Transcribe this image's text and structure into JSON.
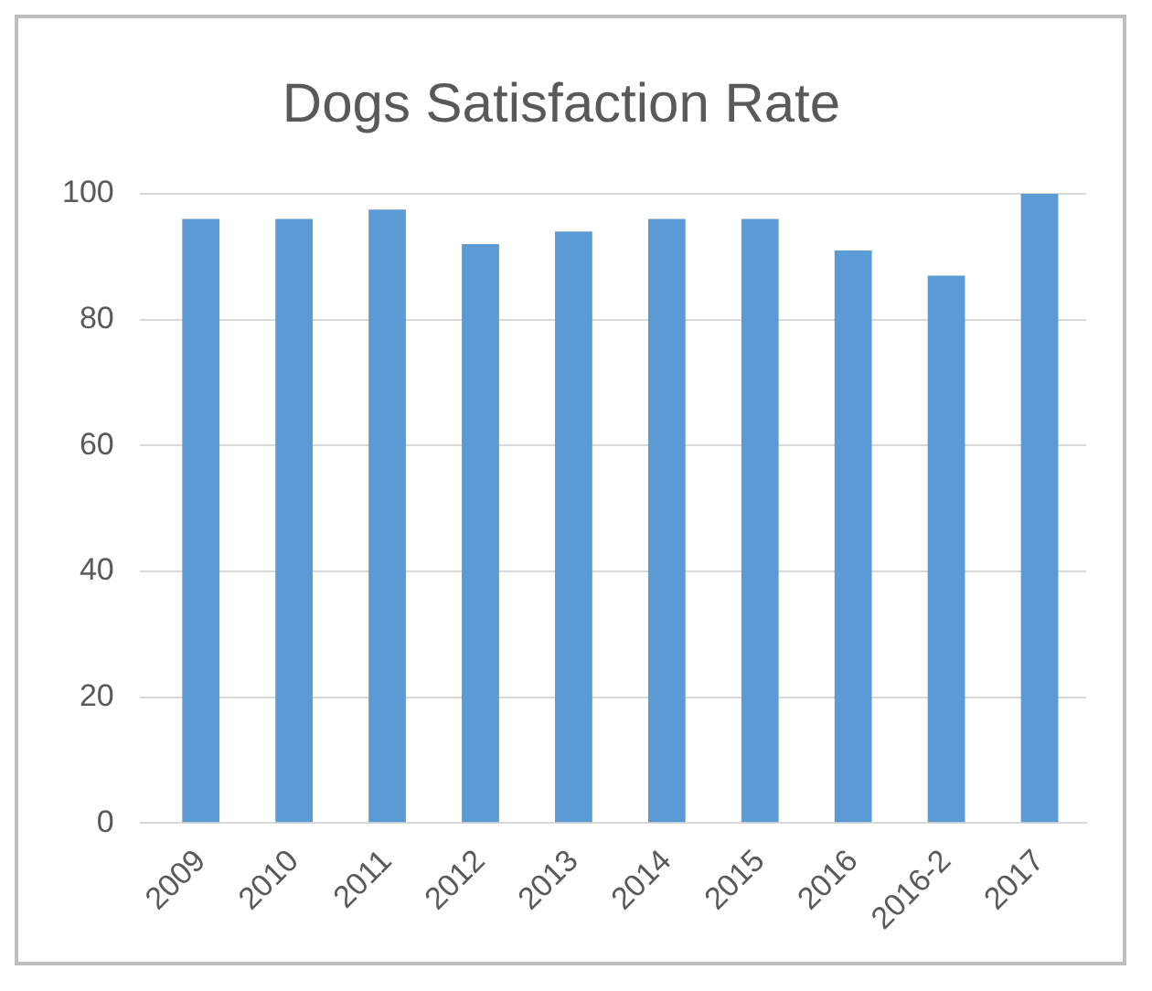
{
  "chart_data": {
    "type": "bar",
    "title": "Dogs Satisfaction Rate",
    "categories": [
      "2009",
      "2010",
      "2011",
      "2012",
      "2013",
      "2014",
      "2015",
      "2016",
      "2016-2",
      "2017"
    ],
    "values": [
      96,
      96,
      97.5,
      92,
      94,
      96,
      96,
      91,
      87,
      100
    ],
    "color": "#5b9bd5",
    "ylim": [
      0,
      100
    ],
    "yticks": [
      0,
      20,
      40,
      60,
      80,
      100
    ],
    "grid": "y"
  }
}
